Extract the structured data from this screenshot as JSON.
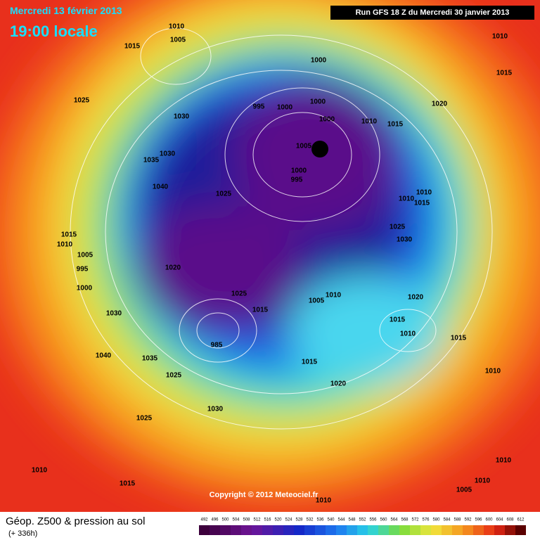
{
  "header": {
    "date": "Mercredi 13 février 2013",
    "time": "19:00 locale",
    "run": "Run GFS 18 Z du Mercredi 30 janvier 2013"
  },
  "copyright": "Copyright © 2012 Meteociel.fr",
  "legend": {
    "title": "Géop. Z500 & pression au sol",
    "lead": "(+ 336h)",
    "scale": [
      492,
      496,
      500,
      504,
      508,
      512,
      516,
      520,
      524,
      528,
      532,
      536,
      540,
      544,
      548,
      552,
      556,
      560,
      564,
      568,
      572,
      576,
      580,
      584,
      588,
      592,
      596,
      600,
      604,
      608,
      612
    ]
  },
  "isobar_labels": [
    1010,
    1005,
    1015,
    1025,
    1030,
    1030,
    1035,
    1040,
    1025,
    1000,
    995,
    1000,
    1000,
    1000,
    1010,
    1015,
    1005,
    1000,
    995,
    1020,
    1010,
    1015,
    1010,
    1010,
    1015,
    1025,
    1030,
    1015,
    1010,
    1005,
    995,
    1000,
    1020,
    1025,
    1015,
    1010,
    1005,
    1020,
    1015,
    1010,
    1015,
    1030,
    1040,
    1035,
    1025,
    985,
    1015,
    1020,
    1010,
    1030,
    1025,
    1010,
    1015,
    1010,
    1010,
    1005,
    1010
  ]
}
